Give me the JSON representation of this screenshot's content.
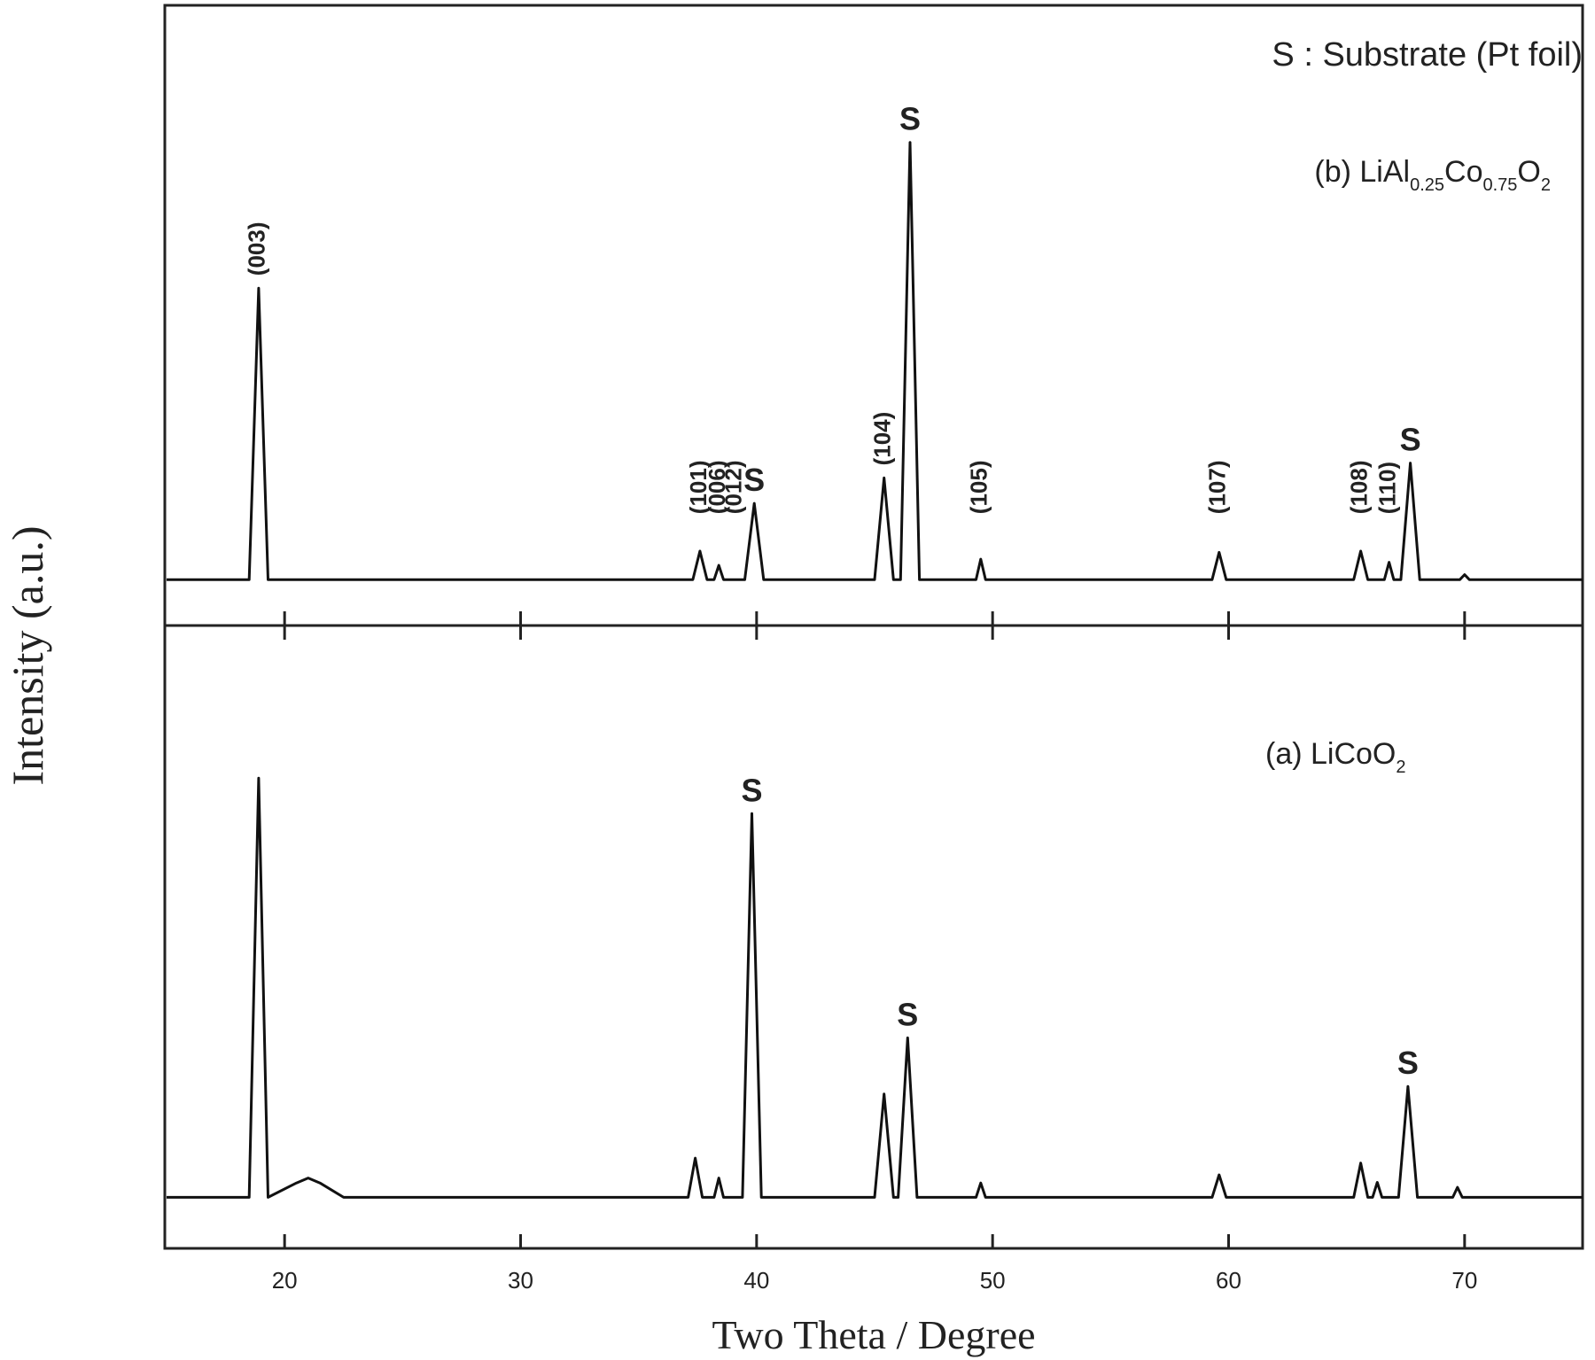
{
  "chart_data": [
    {
      "type": "line",
      "note_label": "S : Substrate (Pt foil)",
      "sample_label": [
        "(b) LiAl",
        "0.25",
        "Co",
        "0.75",
        "O",
        "2"
      ],
      "ylabel": "Intensity (a.u.)",
      "xlim": [
        15,
        75
      ],
      "ylim": [
        0,
        100
      ],
      "xticks": [
        20,
        30,
        40,
        50,
        60,
        70
      ],
      "color": "#111111",
      "x": [
        15,
        18.5,
        18.9,
        19.3,
        37.3,
        37.6,
        37.9,
        38.2,
        38.4,
        38.6,
        39.5,
        39.9,
        40.3,
        45.0,
        45.4,
        45.8,
        46.1,
        46.5,
        46.9,
        49.3,
        49.5,
        49.7,
        59.3,
        59.6,
        59.9,
        65.3,
        65.6,
        65.9,
        66.6,
        66.8,
        67.0,
        67.3,
        67.7,
        68.1,
        69.8,
        70.0,
        70.2,
        75
      ],
      "values": [
        7.4,
        7.4,
        54.4,
        7.4,
        7.4,
        12,
        7.4,
        7.4,
        9.7,
        7.4,
        7.4,
        19.7,
        7.4,
        7.4,
        23.8,
        7.4,
        7.4,
        77.9,
        7.4,
        7.4,
        10.7,
        7.4,
        7.4,
        11.8,
        7.4,
        7.4,
        12,
        7.4,
        7.4,
        10.2,
        7.4,
        7.4,
        26.2,
        7.4,
        7.4,
        8.2,
        7.4,
        7.4
      ],
      "annotations": [
        {
          "text": "(003)",
          "x": 18.9
        },
        {
          "text": "(101)",
          "x": 37.6
        },
        {
          "text": "(006)",
          "x": 38.4
        },
        {
          "text": "(012)",
          "x": 39.1
        },
        {
          "text": "S",
          "x": 39.9
        },
        {
          "text": "(104)",
          "x": 45.4
        },
        {
          "text": "S",
          "x": 46.5
        },
        {
          "text": "(105)",
          "x": 49.5
        },
        {
          "text": "(107)",
          "x": 59.6
        },
        {
          "text": "(108)",
          "x": 65.6
        },
        {
          "text": "(110)",
          "x": 66.8
        },
        {
          "text": "S",
          "x": 67.7
        }
      ]
    },
    {
      "type": "line",
      "sample_label": [
        "(a) LiCoO",
        "2"
      ],
      "xlabel": "Two Theta / Degree",
      "xlim": [
        15,
        75
      ],
      "ylim": [
        0,
        100
      ],
      "xticks": [
        20,
        30,
        40,
        50,
        60,
        70
      ],
      "color": "#111111",
      "x": [
        15,
        18.5,
        18.9,
        19.3,
        20.5,
        21.0,
        21.5,
        22.5,
        37.1,
        37.4,
        37.7,
        38.2,
        38.4,
        38.6,
        39.4,
        39.8,
        40.2,
        45.0,
        45.4,
        45.8,
        46.0,
        46.4,
        46.8,
        49.3,
        49.5,
        49.7,
        59.3,
        59.6,
        59.9,
        65.3,
        65.6,
        65.9,
        66.1,
        66.3,
        66.5,
        67.2,
        67.6,
        68.0,
        69.5,
        69.7,
        69.9,
        75
      ],
      "values": [
        8.2,
        8.2,
        75.5,
        8.2,
        10.5,
        11.3,
        10.5,
        8.2,
        8.2,
        14.5,
        8.2,
        8.2,
        11.3,
        8.2,
        8.2,
        69.8,
        8.2,
        8.2,
        24.8,
        8.2,
        8.2,
        33.8,
        8.2,
        8.2,
        10.5,
        8.2,
        8.2,
        11.8,
        8.2,
        8.2,
        13.7,
        8.2,
        8.2,
        10.6,
        8.2,
        8.2,
        26,
        8.2,
        8.2,
        9.8,
        8.2,
        8.2
      ],
      "annotations": [
        {
          "text": "S",
          "x": 39.8
        },
        {
          "text": "S",
          "x": 46.4
        },
        {
          "text": "S",
          "x": 67.6
        }
      ]
    }
  ]
}
